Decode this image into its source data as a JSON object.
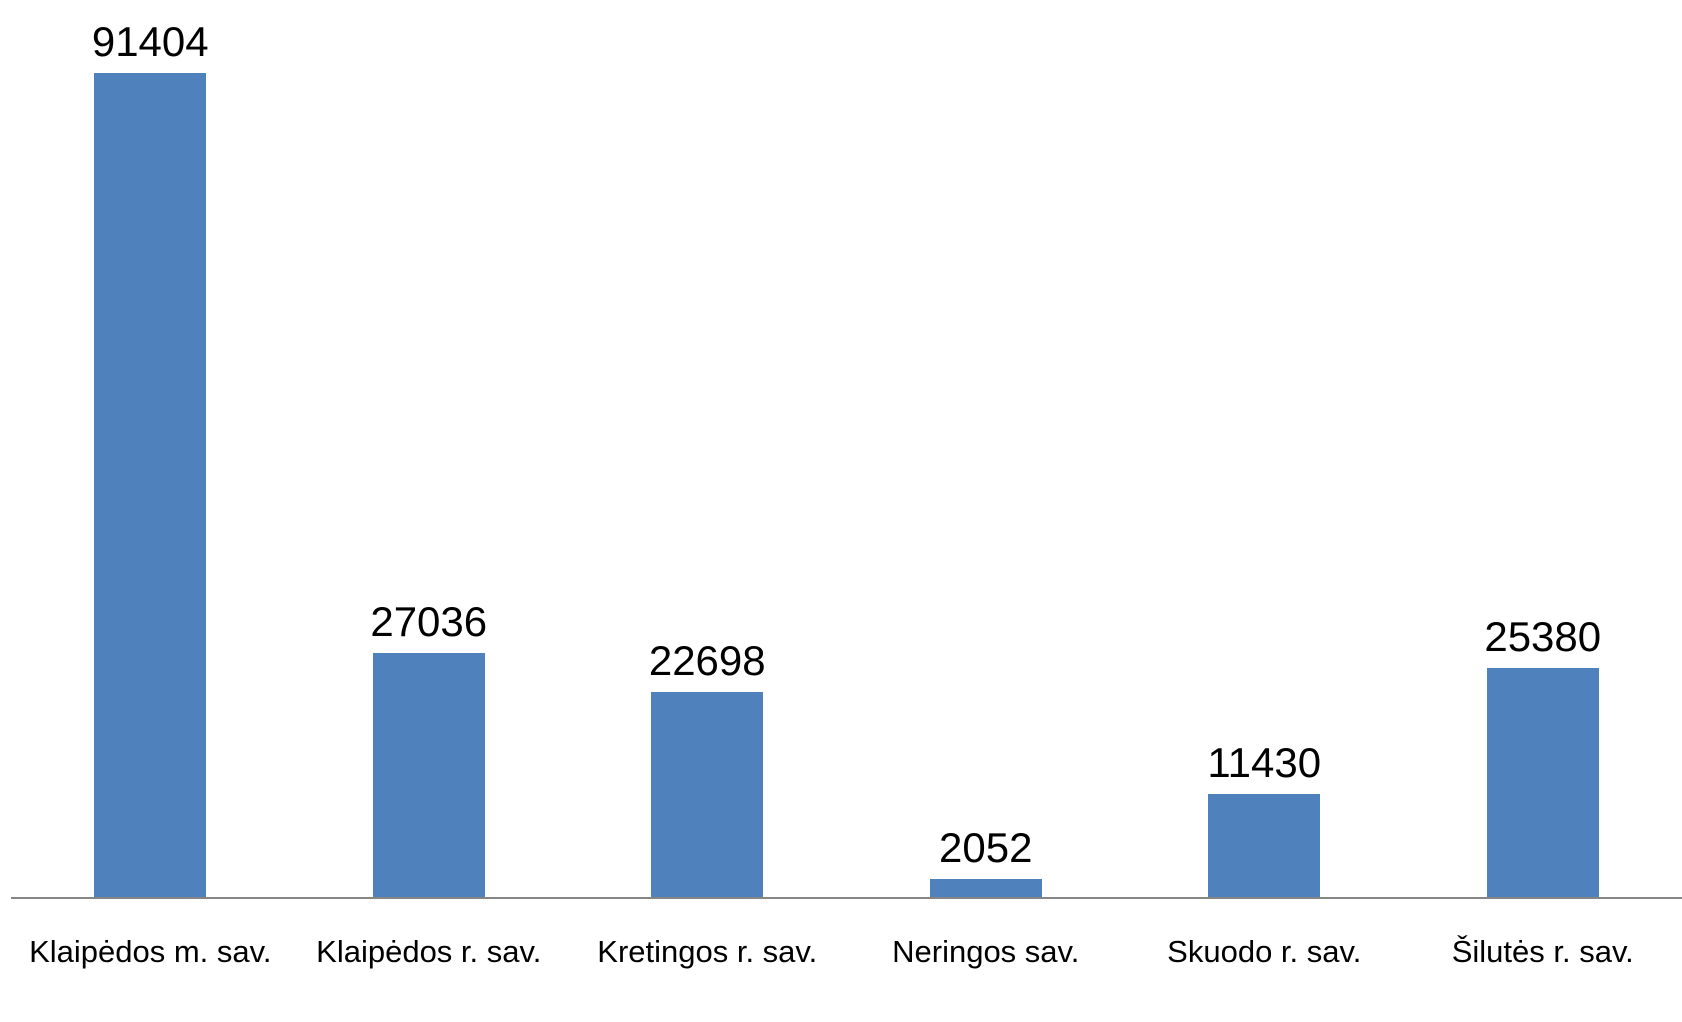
{
  "chart_data": {
    "type": "bar",
    "categories": [
      "Klaipėdos m. sav.",
      "Klaipėdos r. sav.",
      "Kretingos r. sav.",
      "Neringos sav.",
      "Skuodo r. sav.",
      "Šilutės r. sav."
    ],
    "values": [
      91404,
      27036,
      22698,
      2052,
      11430,
      25380
    ],
    "color": "#4f81bd"
  }
}
